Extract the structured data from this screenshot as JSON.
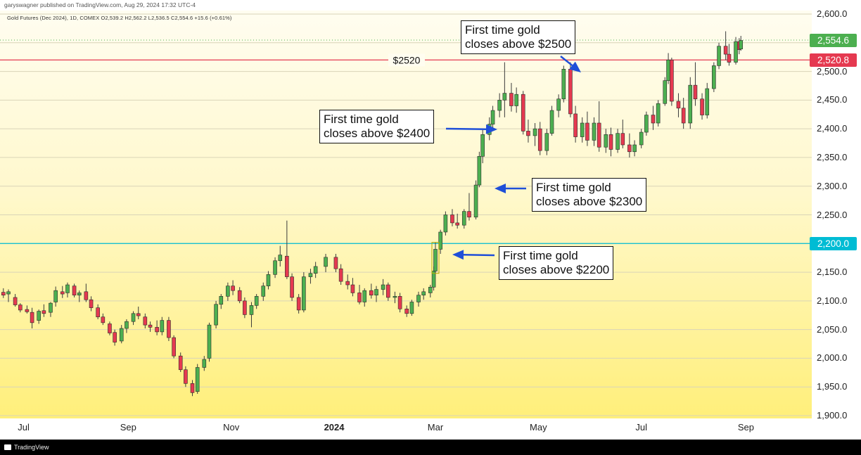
{
  "header": {
    "published_by": "garyswagner published on TradingView.com, Aug 29, 2024 17:32 UTC-4",
    "instrument_info": "Gold Futures (Dec 2024), 1D, COMEX  O2,539.2  H2,562.2  L2,536.5  C2,554.6  +15.6 (+0.61%)"
  },
  "footer": {
    "brand": "TradingView"
  },
  "chart_data": {
    "type": "candlestick",
    "title": "Gold Futures (Dec 2024), 1D, COMEX",
    "ylim": [
      1900,
      2600
    ],
    "y_ticks": [
      "2,600.0",
      "2,550.0",
      "2,500.0",
      "2,450.0",
      "2,400.0",
      "2,350.0",
      "2,300.0",
      "2,250.0",
      "2,200.0",
      "2,150.0",
      "2,100.0",
      "2,050.0",
      "2,000.0",
      "1,950.0",
      "1,900.0"
    ],
    "x_ticks": [
      {
        "label": "Jul",
        "date": "2023-07-01",
        "bold": false
      },
      {
        "label": "Sep",
        "date": "2023-09-01",
        "bold": false
      },
      {
        "label": "Nov",
        "date": "2023-11-01",
        "bold": false
      },
      {
        "label": "2024",
        "date": "2024-01-01",
        "bold": true
      },
      {
        "label": "Mar",
        "date": "2024-03-01",
        "bold": false
      },
      {
        "label": "May",
        "date": "2024-05-01",
        "bold": false
      },
      {
        "label": "Jul",
        "date": "2024-07-01",
        "bold": false
      },
      {
        "label": "Sep",
        "date": "2024-09-01",
        "bold": false
      }
    ],
    "colors": {
      "up": "#4caf50",
      "down": "#e53950",
      "level_red": "#e53950",
      "level_cyan": "#00bcd4",
      "last_price": "#4caf50",
      "arrow": "#1f4fd8"
    },
    "levels": [
      {
        "value": 2520,
        "label": "$2520",
        "tag": "2,520.8",
        "color": "#e53950"
      },
      {
        "value": 2200,
        "label": "",
        "tag": "2,200.0",
        "color": "#00bcd4"
      }
    ],
    "last_price": {
      "value": 2554.6,
      "tag": "2,554.6"
    },
    "annotations": [
      {
        "line1": "First time gold",
        "line2": "closes above $2500",
        "date": "2024-05-10",
        "price": 2502
      },
      {
        "line1": "First time gold",
        "line2": "closes above $2400",
        "date": "2024-03-27",
        "price": 2398
      },
      {
        "line1": "First time gold",
        "line2": "closes above $2300",
        "date": "2024-03-25",
        "price": 2300
      },
      {
        "line1": "First time gold",
        "line2": "closes above $2200",
        "date": "2024-03-01",
        "price": 2180
      }
    ],
    "candles": [
      {
        "d": "2023-06-19",
        "o": 2115,
        "h": 2122,
        "l": 2105,
        "c": 2110
      },
      {
        "d": "2023-06-22",
        "o": 2112,
        "h": 2120,
        "l": 2098,
        "c": 2116
      },
      {
        "d": "2023-06-26",
        "o": 2106,
        "h": 2112,
        "l": 2090,
        "c": 2093
      },
      {
        "d": "2023-06-29",
        "o": 2093,
        "h": 2096,
        "l": 2080,
        "c": 2084
      },
      {
        "d": "2023-07-03",
        "o": 2085,
        "h": 2092,
        "l": 2078,
        "c": 2081
      },
      {
        "d": "2023-07-06",
        "o": 2080,
        "h": 2088,
        "l": 2052,
        "c": 2062
      },
      {
        "d": "2023-07-10",
        "o": 2066,
        "h": 2085,
        "l": 2060,
        "c": 2082
      },
      {
        "d": "2023-07-13",
        "o": 2083,
        "h": 2094,
        "l": 2072,
        "c": 2078
      },
      {
        "d": "2023-07-17",
        "o": 2080,
        "h": 2098,
        "l": 2072,
        "c": 2096
      },
      {
        "d": "2023-07-20",
        "o": 2098,
        "h": 2125,
        "l": 2090,
        "c": 2118
      },
      {
        "d": "2023-07-24",
        "o": 2116,
        "h": 2126,
        "l": 2105,
        "c": 2112
      },
      {
        "d": "2023-07-27",
        "o": 2114,
        "h": 2132,
        "l": 2106,
        "c": 2128
      },
      {
        "d": "2023-07-31",
        "o": 2126,
        "h": 2130,
        "l": 2106,
        "c": 2110
      },
      {
        "d": "2023-08-03",
        "o": 2110,
        "h": 2118,
        "l": 2098,
        "c": 2114
      },
      {
        "d": "2023-08-07",
        "o": 2116,
        "h": 2130,
        "l": 2098,
        "c": 2102
      },
      {
        "d": "2023-08-10",
        "o": 2102,
        "h": 2108,
        "l": 2082,
        "c": 2088
      },
      {
        "d": "2023-08-14",
        "o": 2088,
        "h": 2094,
        "l": 2068,
        "c": 2072
      },
      {
        "d": "2023-08-17",
        "o": 2072,
        "h": 2078,
        "l": 2058,
        "c": 2062
      },
      {
        "d": "2023-08-21",
        "o": 2060,
        "h": 2064,
        "l": 2040,
        "c": 2044
      },
      {
        "d": "2023-08-24",
        "o": 2045,
        "h": 2050,
        "l": 2022,
        "c": 2028
      },
      {
        "d": "2023-08-28",
        "o": 2030,
        "h": 2058,
        "l": 2026,
        "c": 2052
      },
      {
        "d": "2023-08-31",
        "o": 2052,
        "h": 2068,
        "l": 2044,
        "c": 2064
      },
      {
        "d": "2023-09-04",
        "o": 2064,
        "h": 2082,
        "l": 2058,
        "c": 2078
      },
      {
        "d": "2023-09-07",
        "o": 2078,
        "h": 2090,
        "l": 2068,
        "c": 2074
      },
      {
        "d": "2023-09-11",
        "o": 2072,
        "h": 2078,
        "l": 2052,
        "c": 2058
      },
      {
        "d": "2023-09-14",
        "o": 2058,
        "h": 2064,
        "l": 2046,
        "c": 2054
      },
      {
        "d": "2023-09-18",
        "o": 2054,
        "h": 2066,
        "l": 2040,
        "c": 2046
      },
      {
        "d": "2023-09-21",
        "o": 2046,
        "h": 2072,
        "l": 2040,
        "c": 2066
      },
      {
        "d": "2023-09-25",
        "o": 2066,
        "h": 2072,
        "l": 2030,
        "c": 2036
      },
      {
        "d": "2023-09-28",
        "o": 2036,
        "h": 2040,
        "l": 2000,
        "c": 2004
      },
      {
        "d": "2023-10-02",
        "o": 2004,
        "h": 2010,
        "l": 1976,
        "c": 1980
      },
      {
        "d": "2023-10-05",
        "o": 1980,
        "h": 1986,
        "l": 1950,
        "c": 1956
      },
      {
        "d": "2023-10-09",
        "o": 1956,
        "h": 1962,
        "l": 1934,
        "c": 1940
      },
      {
        "d": "2023-10-12",
        "o": 1942,
        "h": 1990,
        "l": 1938,
        "c": 1984
      },
      {
        "d": "2023-10-16",
        "o": 1984,
        "h": 2004,
        "l": 1978,
        "c": 1998
      },
      {
        "d": "2023-10-19",
        "o": 2000,
        "h": 2062,
        "l": 1994,
        "c": 2058
      },
      {
        "d": "2023-10-23",
        "o": 2058,
        "h": 2100,
        "l": 2052,
        "c": 2094
      },
      {
        "d": "2023-10-26",
        "o": 2094,
        "h": 2112,
        "l": 2086,
        "c": 2108
      },
      {
        "d": "2023-10-30",
        "o": 2108,
        "h": 2132,
        "l": 2100,
        "c": 2126
      },
      {
        "d": "2023-11-02",
        "o": 2126,
        "h": 2136,
        "l": 2110,
        "c": 2118
      },
      {
        "d": "2023-11-06",
        "o": 2118,
        "h": 2124,
        "l": 2096,
        "c": 2100
      },
      {
        "d": "2023-11-09",
        "o": 2100,
        "h": 2106,
        "l": 2070,
        "c": 2076
      },
      {
        "d": "2023-11-13",
        "o": 2076,
        "h": 2098,
        "l": 2054,
        "c": 2092
      },
      {
        "d": "2023-11-16",
        "o": 2092,
        "h": 2112,
        "l": 2086,
        "c": 2108
      },
      {
        "d": "2023-11-20",
        "o": 2108,
        "h": 2132,
        "l": 2100,
        "c": 2126
      },
      {
        "d": "2023-11-23",
        "o": 2126,
        "h": 2152,
        "l": 2120,
        "c": 2146
      },
      {
        "d": "2023-11-27",
        "o": 2146,
        "h": 2176,
        "l": 2140,
        "c": 2170
      },
      {
        "d": "2023-11-30",
        "o": 2170,
        "h": 2196,
        "l": 2160,
        "c": 2180
      },
      {
        "d": "2023-12-04",
        "o": 2178,
        "h": 2240,
        "l": 2138,
        "c": 2142
      },
      {
        "d": "2023-12-07",
        "o": 2142,
        "h": 2148,
        "l": 2100,
        "c": 2106
      },
      {
        "d": "2023-12-11",
        "o": 2106,
        "h": 2112,
        "l": 2078,
        "c": 2084
      },
      {
        "d": "2023-12-14",
        "o": 2084,
        "h": 2150,
        "l": 2080,
        "c": 2142
      },
      {
        "d": "2023-12-18",
        "o": 2142,
        "h": 2156,
        "l": 2130,
        "c": 2148
      },
      {
        "d": "2023-12-21",
        "o": 2148,
        "h": 2168,
        "l": 2140,
        "c": 2160
      },
      {
        "d": "2023-12-27",
        "o": 2160,
        "h": 2182,
        "l": 2150,
        "c": 2176
      },
      {
        "d": "2024-01-02",
        "o": 2176,
        "h": 2182,
        "l": 2150,
        "c": 2156
      },
      {
        "d": "2024-01-05",
        "o": 2156,
        "h": 2164,
        "l": 2128,
        "c": 2134
      },
      {
        "d": "2024-01-09",
        "o": 2134,
        "h": 2146,
        "l": 2120,
        "c": 2128
      },
      {
        "d": "2024-01-12",
        "o": 2128,
        "h": 2140,
        "l": 2108,
        "c": 2114
      },
      {
        "d": "2024-01-16",
        "o": 2114,
        "h": 2128,
        "l": 2094,
        "c": 2098
      },
      {
        "d": "2024-01-19",
        "o": 2098,
        "h": 2122,
        "l": 2090,
        "c": 2118
      },
      {
        "d": "2024-01-23",
        "o": 2118,
        "h": 2130,
        "l": 2104,
        "c": 2110
      },
      {
        "d": "2024-01-26",
        "o": 2110,
        "h": 2126,
        "l": 2098,
        "c": 2120
      },
      {
        "d": "2024-01-30",
        "o": 2120,
        "h": 2138,
        "l": 2110,
        "c": 2128
      },
      {
        "d": "2024-02-02",
        "o": 2128,
        "h": 2132,
        "l": 2100,
        "c": 2106
      },
      {
        "d": "2024-02-06",
        "o": 2106,
        "h": 2116,
        "l": 2096,
        "c": 2108
      },
      {
        "d": "2024-02-09",
        "o": 2108,
        "h": 2114,
        "l": 2080,
        "c": 2086
      },
      {
        "d": "2024-02-13",
        "o": 2086,
        "h": 2092,
        "l": 2072,
        "c": 2078
      },
      {
        "d": "2024-02-16",
        "o": 2078,
        "h": 2102,
        "l": 2074,
        "c": 2098
      },
      {
        "d": "2024-02-20",
        "o": 2098,
        "h": 2116,
        "l": 2090,
        "c": 2110
      },
      {
        "d": "2024-02-23",
        "o": 2110,
        "h": 2122,
        "l": 2102,
        "c": 2116
      },
      {
        "d": "2024-02-27",
        "o": 2114,
        "h": 2128,
        "l": 2106,
        "c": 2124
      },
      {
        "d": "2024-02-29",
        "o": 2124,
        "h": 2160,
        "l": 2118,
        "c": 2152
      },
      {
        "d": "2024-03-01",
        "o": 2152,
        "h": 2202,
        "l": 2148,
        "c": 2190
      },
      {
        "d": "2024-03-04",
        "o": 2190,
        "h": 2224,
        "l": 2182,
        "c": 2220
      },
      {
        "d": "2024-03-07",
        "o": 2220,
        "h": 2256,
        "l": 2214,
        "c": 2250
      },
      {
        "d": "2024-03-11",
        "o": 2250,
        "h": 2260,
        "l": 2230,
        "c": 2236
      },
      {
        "d": "2024-03-14",
        "o": 2236,
        "h": 2252,
        "l": 2226,
        "c": 2232
      },
      {
        "d": "2024-03-18",
        "o": 2232,
        "h": 2260,
        "l": 2226,
        "c": 2256
      },
      {
        "d": "2024-03-21",
        "o": 2256,
        "h": 2288,
        "l": 2240,
        "c": 2246
      },
      {
        "d": "2024-03-25",
        "o": 2246,
        "h": 2310,
        "l": 2242,
        "c": 2302
      },
      {
        "d": "2024-03-27",
        "o": 2302,
        "h": 2360,
        "l": 2298,
        "c": 2352
      },
      {
        "d": "2024-03-29",
        "o": 2352,
        "h": 2398,
        "l": 2340,
        "c": 2390
      },
      {
        "d": "2024-04-02",
        "o": 2390,
        "h": 2420,
        "l": 2380,
        "c": 2408
      },
      {
        "d": "2024-04-04",
        "o": 2408,
        "h": 2440,
        "l": 2398,
        "c": 2432
      },
      {
        "d": "2024-04-08",
        "o": 2432,
        "h": 2462,
        "l": 2420,
        "c": 2450
      },
      {
        "d": "2024-04-11",
        "o": 2450,
        "h": 2516,
        "l": 2420,
        "c": 2462
      },
      {
        "d": "2024-04-15",
        "o": 2462,
        "h": 2480,
        "l": 2430,
        "c": 2440
      },
      {
        "d": "2024-04-18",
        "o": 2440,
        "h": 2472,
        "l": 2428,
        "c": 2460
      },
      {
        "d": "2024-04-22",
        "o": 2460,
        "h": 2466,
        "l": 2390,
        "c": 2396
      },
      {
        "d": "2024-04-25",
        "o": 2396,
        "h": 2416,
        "l": 2376,
        "c": 2388
      },
      {
        "d": "2024-04-29",
        "o": 2388,
        "h": 2410,
        "l": 2370,
        "c": 2400
      },
      {
        "d": "2024-05-02",
        "o": 2400,
        "h": 2412,
        "l": 2354,
        "c": 2362
      },
      {
        "d": "2024-05-06",
        "o": 2362,
        "h": 2400,
        "l": 2354,
        "c": 2392
      },
      {
        "d": "2024-05-09",
        "o": 2392,
        "h": 2440,
        "l": 2388,
        "c": 2432
      },
      {
        "d": "2024-05-13",
        "o": 2432,
        "h": 2460,
        "l": 2420,
        "c": 2452
      },
      {
        "d": "2024-05-16",
        "o": 2452,
        "h": 2510,
        "l": 2446,
        "c": 2504
      },
      {
        "d": "2024-05-20",
        "o": 2504,
        "h": 2516,
        "l": 2420,
        "c": 2426
      },
      {
        "d": "2024-05-23",
        "o": 2426,
        "h": 2440,
        "l": 2376,
        "c": 2386
      },
      {
        "d": "2024-05-27",
        "o": 2386,
        "h": 2420,
        "l": 2376,
        "c": 2410
      },
      {
        "d": "2024-05-30",
        "o": 2410,
        "h": 2430,
        "l": 2370,
        "c": 2380
      },
      {
        "d": "2024-06-03",
        "o": 2380,
        "h": 2420,
        "l": 2370,
        "c": 2410
      },
      {
        "d": "2024-06-06",
        "o": 2410,
        "h": 2448,
        "l": 2360,
        "c": 2368
      },
      {
        "d": "2024-06-10",
        "o": 2368,
        "h": 2400,
        "l": 2358,
        "c": 2390
      },
      {
        "d": "2024-06-13",
        "o": 2390,
        "h": 2402,
        "l": 2352,
        "c": 2364
      },
      {
        "d": "2024-06-17",
        "o": 2364,
        "h": 2400,
        "l": 2358,
        "c": 2392
      },
      {
        "d": "2024-06-20",
        "o": 2392,
        "h": 2416,
        "l": 2366,
        "c": 2372
      },
      {
        "d": "2024-06-24",
        "o": 2372,
        "h": 2392,
        "l": 2350,
        "c": 2360
      },
      {
        "d": "2024-06-27",
        "o": 2360,
        "h": 2380,
        "l": 2352,
        "c": 2372
      },
      {
        "d": "2024-07-01",
        "o": 2372,
        "h": 2400,
        "l": 2366,
        "c": 2394
      },
      {
        "d": "2024-07-04",
        "o": 2394,
        "h": 2430,
        "l": 2388,
        "c": 2424
      },
      {
        "d": "2024-07-08",
        "o": 2424,
        "h": 2440,
        "l": 2398,
        "c": 2410
      },
      {
        "d": "2024-07-11",
        "o": 2410,
        "h": 2450,
        "l": 2404,
        "c": 2444
      },
      {
        "d": "2024-07-15",
        "o": 2444,
        "h": 2490,
        "l": 2440,
        "c": 2484
      },
      {
        "d": "2024-07-17",
        "o": 2484,
        "h": 2532,
        "l": 2478,
        "c": 2520
      },
      {
        "d": "2024-07-19",
        "o": 2520,
        "h": 2524,
        "l": 2440,
        "c": 2448
      },
      {
        "d": "2024-07-23",
        "o": 2448,
        "h": 2462,
        "l": 2420,
        "c": 2436
      },
      {
        "d": "2024-07-26",
        "o": 2436,
        "h": 2454,
        "l": 2400,
        "c": 2410
      },
      {
        "d": "2024-07-30",
        "o": 2410,
        "h": 2490,
        "l": 2400,
        "c": 2476
      },
      {
        "d": "2024-08-02",
        "o": 2476,
        "h": 2516,
        "l": 2440,
        "c": 2452
      },
      {
        "d": "2024-08-06",
        "o": 2452,
        "h": 2462,
        "l": 2416,
        "c": 2424
      },
      {
        "d": "2024-08-09",
        "o": 2424,
        "h": 2480,
        "l": 2418,
        "c": 2470
      },
      {
        "d": "2024-08-13",
        "o": 2470,
        "h": 2516,
        "l": 2464,
        "c": 2510
      },
      {
        "d": "2024-08-16",
        "o": 2510,
        "h": 2550,
        "l": 2504,
        "c": 2544
      },
      {
        "d": "2024-08-20",
        "o": 2544,
        "h": 2570,
        "l": 2520,
        "c": 2530
      },
      {
        "d": "2024-08-22",
        "o": 2530,
        "h": 2548,
        "l": 2510,
        "c": 2516
      },
      {
        "d": "2024-08-26",
        "o": 2516,
        "h": 2560,
        "l": 2512,
        "c": 2552
      },
      {
        "d": "2024-08-28",
        "o": 2552,
        "h": 2558,
        "l": 2530,
        "c": 2538
      },
      {
        "d": "2024-08-29",
        "o": 2539,
        "h": 2562,
        "l": 2536,
        "c": 2554
      }
    ]
  }
}
